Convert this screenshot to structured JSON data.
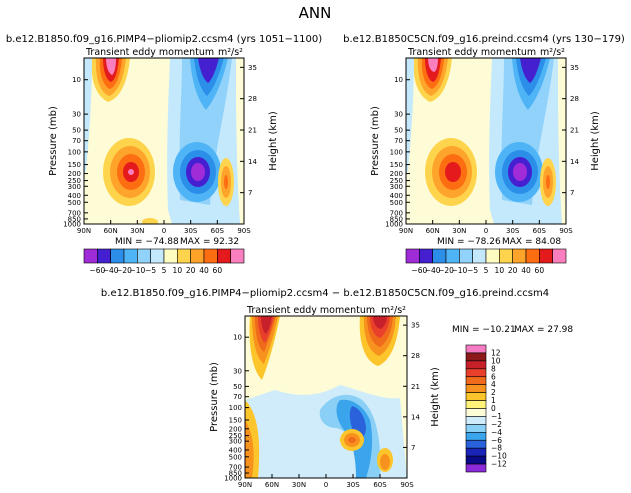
{
  "figure_title": "ANN",
  "chart_data": [
    {
      "type": "heatmap",
      "id": "top_left",
      "title": "b.e12.B1850.f09_g16.PIMP4−pliomip2.ccsm4  (yrs 1051−1100)",
      "subtitle": "Transient  eddy  momentum",
      "units_label": "m²/s²",
      "xlabel": "",
      "ylabel": "Pressure  (mb)",
      "ylabel_right": "Height  (km)",
      "x_ticks": [
        "90N",
        "60N",
        "30N",
        "0",
        "30S",
        "60S",
        "90S"
      ],
      "y_ticks": [
        "10",
        "30",
        "50",
        "70",
        "100",
        "150",
        "200",
        "250",
        "300",
        "400",
        "500",
        "700",
        "850",
        "1000"
      ],
      "height_ticks": [
        "35",
        "28",
        "21",
        "14",
        "7"
      ],
      "min_label": "MIN = −74.88",
      "max_label": "MAX =  92.32",
      "min": -74.88,
      "max": 92.32,
      "contour_levels": [
        -60,
        -40,
        -20,
        -10,
        -5,
        5,
        10,
        20,
        40,
        60
      ],
      "colorbar_labels": [
        "−60",
        "−40",
        "−20",
        "−10",
        "−5",
        "5",
        "10",
        "20",
        "40",
        "60"
      ],
      "colorbar_colors": [
        "#a02cd8",
        "#4420d0",
        "#2b8ee8",
        "#4fb4f6",
        "#90d2fa",
        "#c4e8fc",
        "#fefcc0",
        "#fed44c",
        "#fea42a",
        "#fd6d12",
        "#e41a1c",
        "#fa7fbe"
      ]
    },
    {
      "type": "heatmap",
      "id": "top_right",
      "title": "b.e12.B1850C5CN.f09_g16.preind.ccsm4  (yrs 130−179)",
      "subtitle": "Transient  eddy  momentum",
      "units_label": "m²/s²",
      "xlabel": "",
      "ylabel": "Pressure  (mb)",
      "ylabel_right": "Height  (km)",
      "x_ticks": [
        "90N",
        "60N",
        "30N",
        "0",
        "30S",
        "60S",
        "90S"
      ],
      "y_ticks": [
        "10",
        "30",
        "50",
        "70",
        "100",
        "150",
        "200",
        "250",
        "300",
        "400",
        "500",
        "700",
        "850",
        "1000"
      ],
      "height_ticks": [
        "35",
        "28",
        "21",
        "14",
        "7"
      ],
      "min_label": "MIN = −78.26",
      "max_label": "MAX =  84.08",
      "min": -78.26,
      "max": 84.08,
      "contour_levels": [
        -60,
        -40,
        -20,
        -10,
        -5,
        5,
        10,
        20,
        40,
        60
      ],
      "colorbar_labels": [
        "−60",
        "−40",
        "−20",
        "−10",
        "−5",
        "5",
        "10",
        "20",
        "40",
        "60"
      ],
      "colorbar_colors": [
        "#a02cd8",
        "#4420d0",
        "#2b8ee8",
        "#4fb4f6",
        "#90d2fa",
        "#c4e8fc",
        "#fefcc0",
        "#fed44c",
        "#fea42a",
        "#fd6d12",
        "#e41a1c",
        "#fa7fbe"
      ]
    },
    {
      "type": "heatmap",
      "id": "difference",
      "title": "b.e12.B1850.f09_g16.PIMP4−pliomip2.ccsm4 − b.e12.B1850C5CN.f09_g16.preind.ccsm4",
      "subtitle": "Transient  eddy  momentum",
      "units_label": "m²/s²",
      "xlabel": "",
      "ylabel": "Pressure  (mb)",
      "ylabel_right": "Height  (km)",
      "x_ticks": [
        "90N",
        "60N",
        "30N",
        "0",
        "30S",
        "60S",
        "90S"
      ],
      "y_ticks": [
        "10",
        "30",
        "50",
        "70",
        "100",
        "150",
        "200",
        "250",
        "300",
        "400",
        "500",
        "700",
        "850",
        "1000"
      ],
      "height_ticks": [
        "35",
        "28",
        "21",
        "14",
        "7"
      ],
      "min_label": "MIN = −10.21",
      "max_label": "MAX =  27.98",
      "min": -10.21,
      "max": 27.98,
      "contour_levels": [
        12,
        10,
        8,
        6,
        4,
        2,
        1,
        0,
        -1,
        -2,
        -4,
        -6,
        -8,
        -10,
        -12
      ],
      "colorbar_labels": [
        "12",
        "10",
        "8",
        "6",
        "4",
        "2",
        "1",
        "0",
        "−1",
        "−2",
        "−4",
        "−6",
        "−8",
        "−10",
        "−12"
      ],
      "colorbar_colors": [
        "#f57bc4",
        "#8c1a1a",
        "#c8202a",
        "#e8402a",
        "#f06a1c",
        "#f8921e",
        "#fcc52c",
        "#fff27a",
        "#fefcd6",
        "#d0ecfa",
        "#8ad0f6",
        "#3aa4ec",
        "#2a62dc",
        "#1a24b8",
        "#0a0a88",
        "#8a2ad8"
      ]
    }
  ]
}
